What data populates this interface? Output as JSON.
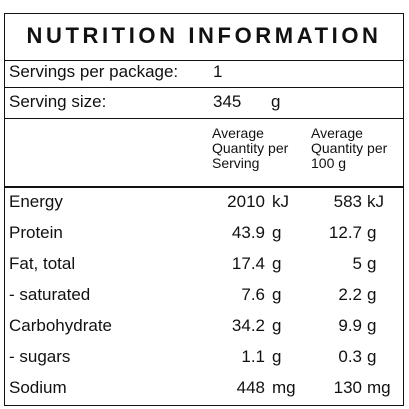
{
  "panel": {
    "title": "NUTRITION INFORMATION",
    "servings_label": "Servings per package:",
    "servings_value": "1",
    "serving_size_label": "Serving size:",
    "serving_size_value": "345",
    "serving_size_unit": "g"
  },
  "columns": {
    "per_serving": [
      "Average",
      "Quantity per",
      "Serving"
    ],
    "per_100g": [
      "Average",
      "Quantity per",
      "100 g"
    ]
  },
  "rows": [
    {
      "label": "Energy",
      "serving": "2010",
      "serving_unit": "kJ",
      "per100": "583",
      "per100_unit": "kJ"
    },
    {
      "label": "Protein",
      "serving": "43.9",
      "serving_unit": "g",
      "per100": "12.7",
      "per100_unit": "g"
    },
    {
      "label": "Fat, total",
      "serving": "17.4",
      "serving_unit": "g",
      "per100": "5",
      "per100_unit": "g"
    },
    {
      "label": "- saturated",
      "serving": "7.6",
      "serving_unit": "g",
      "per100": "2.2",
      "per100_unit": "g"
    },
    {
      "label": "Carbohydrate",
      "serving": "34.2",
      "serving_unit": "g",
      "per100": "9.9",
      "per100_unit": "g"
    },
    {
      "label": "- sugars",
      "serving": "1.1",
      "serving_unit": "g",
      "per100": "0.3",
      "per100_unit": "g"
    },
    {
      "label": "Sodium",
      "serving": "448",
      "serving_unit": "mg",
      "per100": "130",
      "per100_unit": "mg"
    }
  ]
}
